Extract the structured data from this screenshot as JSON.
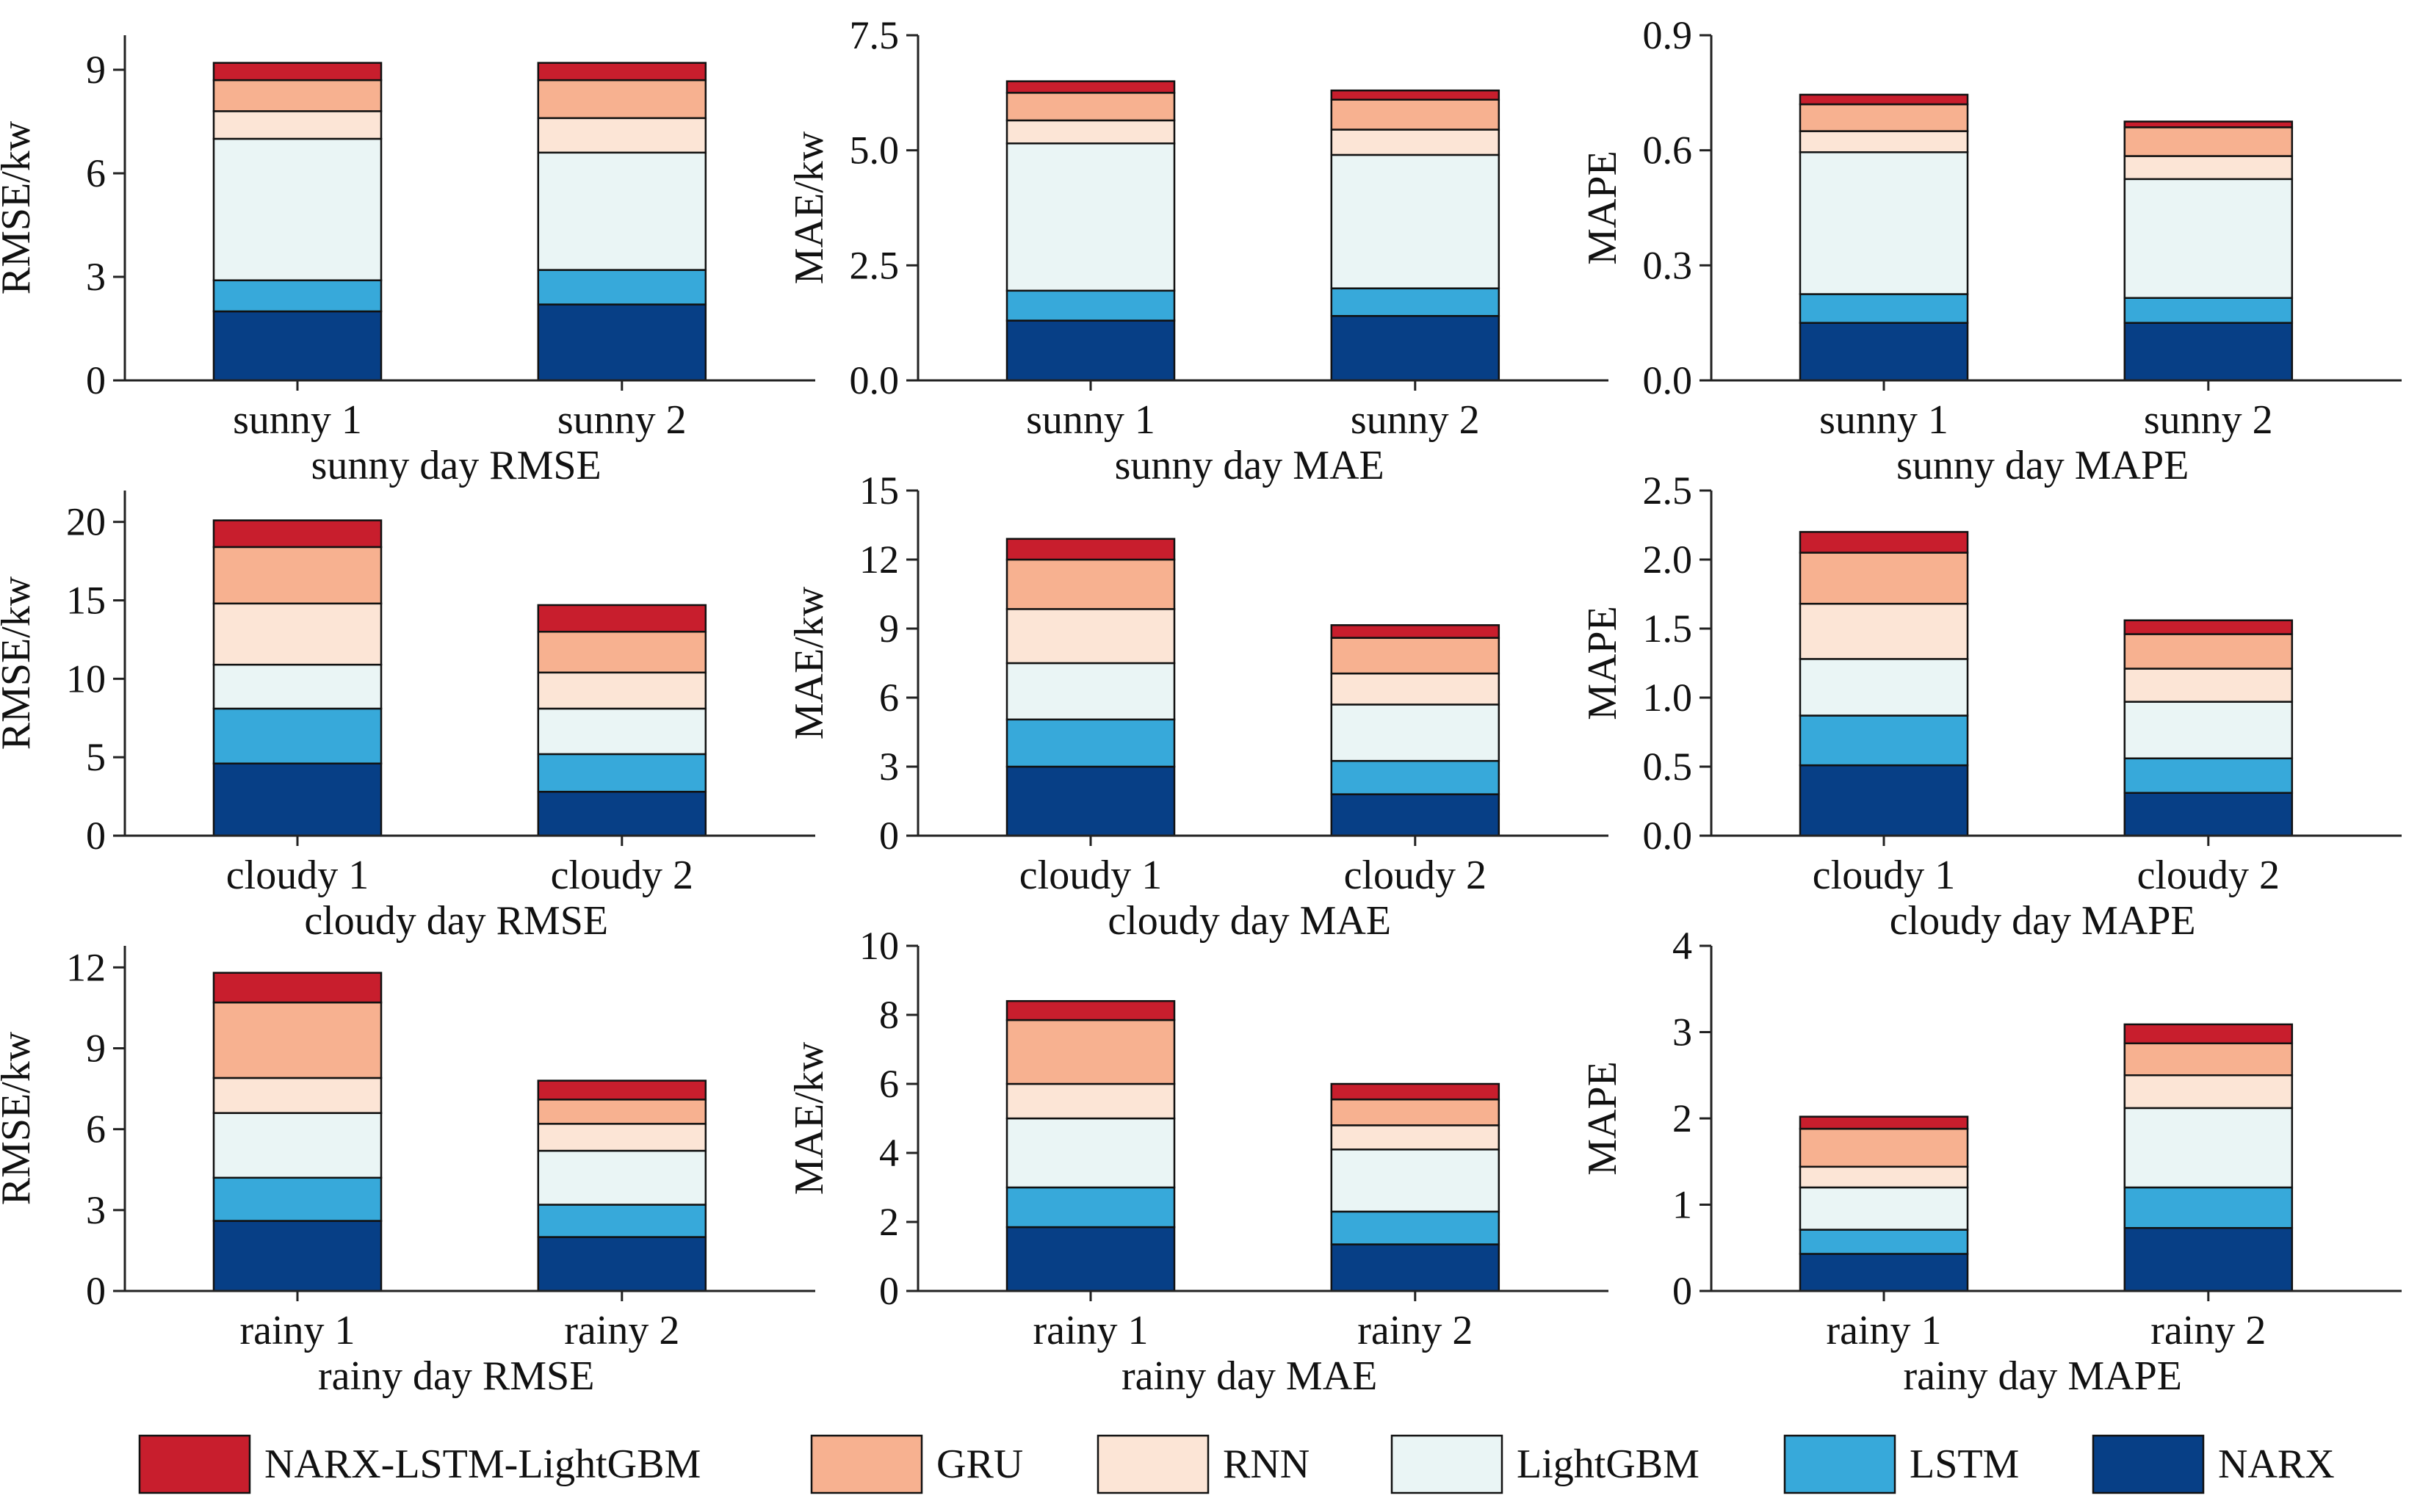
{
  "legend": [
    {
      "name": "NARX-LSTM-LightGBM",
      "color": "#C81E2D"
    },
    {
      "name": "GRU",
      "color": "#F7B190"
    },
    {
      "name": "RNN",
      "color": "#FCE5D6"
    },
    {
      "name": "LightGBM",
      "color": "#EAF5F5"
    },
    {
      "name": "LSTM",
      "color": "#37A9DA"
    },
    {
      "name": "NARX",
      "color": "#073F86"
    }
  ],
  "chart_data": [
    {
      "type": "bar",
      "stacked": true,
      "title": "sunny day RMSE",
      "ylabel": "RMSE/kw",
      "categories": [
        "sunny 1",
        "sunny 2"
      ],
      "ylim": [
        0,
        10
      ],
      "yticks": [
        "0",
        "3",
        "6",
        "9"
      ],
      "ytick_values": [
        0,
        3,
        6,
        9
      ],
      "series": [
        {
          "name": "NARX",
          "values": [
            2.0,
            2.2
          ]
        },
        {
          "name": "LSTM",
          "values": [
            0.9,
            1.0
          ]
        },
        {
          "name": "LightGBM",
          "values": [
            4.1,
            3.4
          ]
        },
        {
          "name": "RNN",
          "values": [
            0.8,
            1.0
          ]
        },
        {
          "name": "GRU",
          "values": [
            0.9,
            1.1
          ]
        },
        {
          "name": "NARX-LSTM-LightGBM",
          "values": [
            0.5,
            0.5
          ]
        }
      ]
    },
    {
      "type": "bar",
      "stacked": true,
      "title": "sunny day MAE",
      "ylabel": "MAE/kw",
      "categories": [
        "sunny 1",
        "sunny 2"
      ],
      "ylim": [
        0,
        7.5
      ],
      "yticks": [
        "0.0",
        "2.5",
        "5.0",
        "7.5"
      ],
      "ytick_values": [
        0,
        2.5,
        5,
        7.5
      ],
      "series": [
        {
          "name": "NARX",
          "values": [
            1.3,
            1.4
          ]
        },
        {
          "name": "LSTM",
          "values": [
            0.65,
            0.6
          ]
        },
        {
          "name": "LightGBM",
          "values": [
            3.2,
            2.9
          ]
        },
        {
          "name": "RNN",
          "values": [
            0.5,
            0.55
          ]
        },
        {
          "name": "GRU",
          "values": [
            0.6,
            0.65
          ]
        },
        {
          "name": "NARX-LSTM-LightGBM",
          "values": [
            0.25,
            0.2
          ]
        }
      ]
    },
    {
      "type": "bar",
      "stacked": true,
      "title": "sunny day MAPE",
      "ylabel": "MAPE",
      "categories": [
        "sunny 1",
        "sunny 2"
      ],
      "ylim": [
        0,
        0.9
      ],
      "yticks": [
        "0.0",
        "0.3",
        "0.6",
        "0.9"
      ],
      "ytick_values": [
        0,
        0.3,
        0.6,
        0.9
      ],
      "series": [
        {
          "name": "NARX",
          "values": [
            0.15,
            0.15
          ]
        },
        {
          "name": "LSTM",
          "values": [
            0.075,
            0.065
          ]
        },
        {
          "name": "LightGBM",
          "values": [
            0.37,
            0.31
          ]
        },
        {
          "name": "RNN",
          "values": [
            0.055,
            0.06
          ]
        },
        {
          "name": "GRU",
          "values": [
            0.07,
            0.075
          ]
        },
        {
          "name": "NARX-LSTM-LightGBM",
          "values": [
            0.025,
            0.015
          ]
        }
      ]
    },
    {
      "type": "bar",
      "stacked": true,
      "title": "cloudy day RMSE",
      "ylabel": "RMSE/kw",
      "categories": [
        "cloudy 1",
        "cloudy 2"
      ],
      "ylim": [
        0,
        22
      ],
      "yticks": [
        "0",
        "5",
        "10",
        "15",
        "20"
      ],
      "ytick_values": [
        0,
        5,
        10,
        15,
        20
      ],
      "series": [
        {
          "name": "NARX",
          "values": [
            4.6,
            2.8
          ]
        },
        {
          "name": "LSTM",
          "values": [
            3.5,
            2.4
          ]
        },
        {
          "name": "LightGBM",
          "values": [
            2.8,
            2.9
          ]
        },
        {
          "name": "RNN",
          "values": [
            3.9,
            2.3
          ]
        },
        {
          "name": "GRU",
          "values": [
            3.6,
            2.6
          ]
        },
        {
          "name": "NARX-LSTM-LightGBM",
          "values": [
            1.7,
            1.7
          ]
        }
      ]
    },
    {
      "type": "bar",
      "stacked": true,
      "title": "cloudy day MAE",
      "ylabel": "MAE/kw",
      "categories": [
        "cloudy 1",
        "cloudy 2"
      ],
      "ylim": [
        0,
        15
      ],
      "yticks": [
        "0",
        "3",
        "6",
        "9",
        "12",
        "15"
      ],
      "ytick_values": [
        0,
        3,
        6,
        9,
        12,
        15
      ],
      "series": [
        {
          "name": "NARX",
          "values": [
            3.0,
            1.8
          ]
        },
        {
          "name": "LSTM",
          "values": [
            2.05,
            1.45
          ]
        },
        {
          "name": "LightGBM",
          "values": [
            2.45,
            2.45
          ]
        },
        {
          "name": "RNN",
          "values": [
            2.35,
            1.35
          ]
        },
        {
          "name": "GRU",
          "values": [
            2.15,
            1.55
          ]
        },
        {
          "name": "NARX-LSTM-LightGBM",
          "values": [
            0.9,
            0.55
          ]
        }
      ]
    },
    {
      "type": "bar",
      "stacked": true,
      "title": "cloudy day MAPE",
      "ylabel": "MAPE",
      "categories": [
        "cloudy 1",
        "cloudy 2"
      ],
      "ylim": [
        0,
        2.5
      ],
      "yticks": [
        "0.0",
        "0.5",
        "1.0",
        "1.5",
        "2.0",
        "2.5"
      ],
      "ytick_values": [
        0,
        0.5,
        1.0,
        1.5,
        2.0,
        2.5
      ],
      "series": [
        {
          "name": "NARX",
          "values": [
            0.51,
            0.31
          ]
        },
        {
          "name": "LSTM",
          "values": [
            0.36,
            0.25
          ]
        },
        {
          "name": "LightGBM",
          "values": [
            0.41,
            0.41
          ]
        },
        {
          "name": "RNN",
          "values": [
            0.4,
            0.24
          ]
        },
        {
          "name": "GRU",
          "values": [
            0.37,
            0.25
          ]
        },
        {
          "name": "NARX-LSTM-LightGBM",
          "values": [
            0.15,
            0.1
          ]
        }
      ]
    },
    {
      "type": "bar",
      "stacked": true,
      "title": "rainy day RMSE",
      "ylabel": "RMSE/kw",
      "categories": [
        "rainy 1",
        "rainy 2"
      ],
      "ylim": [
        0,
        12.8
      ],
      "yticks": [
        "0",
        "3",
        "6",
        "9",
        "12"
      ],
      "ytick_values": [
        0,
        3,
        6,
        9,
        12
      ],
      "series": [
        {
          "name": "NARX",
          "values": [
            2.6,
            2.0
          ]
        },
        {
          "name": "LSTM",
          "values": [
            1.6,
            1.2
          ]
        },
        {
          "name": "LightGBM",
          "values": [
            2.4,
            2.0
          ]
        },
        {
          "name": "RNN",
          "values": [
            1.3,
            1.0
          ]
        },
        {
          "name": "GRU",
          "values": [
            2.8,
            0.9
          ]
        },
        {
          "name": "NARX-LSTM-LightGBM",
          "values": [
            1.1,
            0.7
          ]
        }
      ]
    },
    {
      "type": "bar",
      "stacked": true,
      "title": "rainy day MAE",
      "ylabel": "MAE/kw",
      "categories": [
        "rainy 1",
        "rainy 2"
      ],
      "ylim": [
        0,
        10
      ],
      "yticks": [
        "0",
        "2",
        "4",
        "6",
        "8",
        "10"
      ],
      "ytick_values": [
        0,
        2,
        4,
        6,
        8,
        10
      ],
      "series": [
        {
          "name": "NARX",
          "values": [
            1.85,
            1.35
          ]
        },
        {
          "name": "LSTM",
          "values": [
            1.15,
            0.95
          ]
        },
        {
          "name": "LightGBM",
          "values": [
            2.0,
            1.8
          ]
        },
        {
          "name": "RNN",
          "values": [
            1.0,
            0.7
          ]
        },
        {
          "name": "GRU",
          "values": [
            1.85,
            0.75
          ]
        },
        {
          "name": "NARX-LSTM-LightGBM",
          "values": [
            0.55,
            0.45
          ]
        }
      ]
    },
    {
      "type": "bar",
      "stacked": true,
      "title": "rainy day MAPE",
      "ylabel": "MAPE",
      "categories": [
        "rainy 1",
        "rainy 2"
      ],
      "ylim": [
        0,
        4
      ],
      "yticks": [
        "0",
        "1",
        "2",
        "3",
        "4"
      ],
      "ytick_values": [
        0,
        1,
        2,
        3,
        4
      ],
      "series": [
        {
          "name": "NARX",
          "values": [
            0.43,
            0.73
          ]
        },
        {
          "name": "LSTM",
          "values": [
            0.28,
            0.47
          ]
        },
        {
          "name": "LightGBM",
          "values": [
            0.49,
            0.92
          ]
        },
        {
          "name": "RNN",
          "values": [
            0.24,
            0.38
          ]
        },
        {
          "name": "GRU",
          "values": [
            0.44,
            0.37
          ]
        },
        {
          "name": "NARX-LSTM-LightGBM",
          "values": [
            0.14,
            0.22
          ]
        }
      ]
    }
  ]
}
